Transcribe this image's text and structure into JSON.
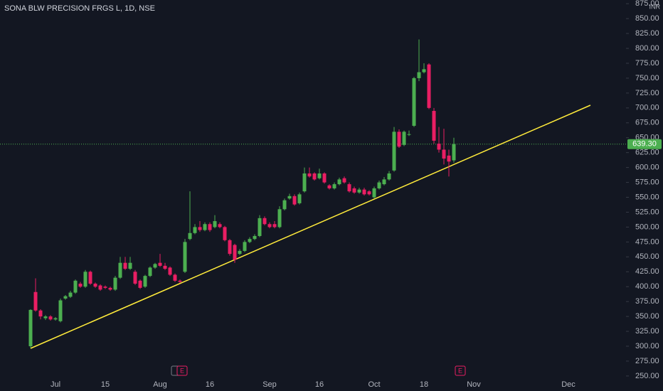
{
  "chart_data": {
    "type": "candlestick",
    "title": "SONA BLW PRECISION FRGS L, 1D, NSE",
    "currency": "INR",
    "up_color": "#4caf50",
    "down_color": "#e91e63",
    "grid": false,
    "ylim": [
      246.3,
      881.2
    ],
    "yticks": [
      {
        "value": 250,
        "label": "250.00"
      },
      {
        "value": 275,
        "label": "275.00"
      },
      {
        "value": 300,
        "label": "300.00"
      },
      {
        "value": 325,
        "label": "325.00"
      },
      {
        "value": 350,
        "label": "350.00"
      },
      {
        "value": 375,
        "label": "375.00"
      },
      {
        "value": 400,
        "label": "400.00"
      },
      {
        "value": 425,
        "label": "425.00"
      },
      {
        "value": 450,
        "label": "450.00"
      },
      {
        "value": 475,
        "label": "475.00"
      },
      {
        "value": 500,
        "label": "500.00"
      },
      {
        "value": 525,
        "label": "525.00"
      },
      {
        "value": 550,
        "label": "550.00"
      },
      {
        "value": 575,
        "label": "575.00"
      },
      {
        "value": 600,
        "label": "600.00"
      },
      {
        "value": 625,
        "label": "625.00"
      },
      {
        "value": 650,
        "label": "650.00"
      },
      {
        "value": 675,
        "label": "675.00"
      },
      {
        "value": 700,
        "label": "700.00"
      },
      {
        "value": 725,
        "label": "725.00"
      },
      {
        "value": 750,
        "label": "750.00"
      },
      {
        "value": 775,
        "label": "775.00"
      },
      {
        "value": 800,
        "label": "800.00"
      },
      {
        "value": 825,
        "label": "825.00"
      },
      {
        "value": 850,
        "label": "850.00"
      },
      {
        "value": 875,
        "label": "875.00"
      }
    ],
    "categories": [
      null,
      null,
      null,
      null,
      null,
      "Jul",
      null,
      null,
      null,
      null,
      null,
      null,
      null,
      null,
      null,
      "15",
      null,
      null,
      null,
      null,
      null,
      null,
      null,
      null,
      null,
      null,
      "Aug",
      null,
      null,
      null,
      null,
      null,
      null,
      null,
      null,
      null,
      "16",
      null,
      null,
      null,
      null,
      null,
      null,
      null,
      null,
      null,
      null,
      null,
      "Sep",
      null,
      null,
      null,
      null,
      null,
      null,
      null,
      null,
      null,
      "16",
      null,
      null,
      null,
      null,
      null,
      null,
      null,
      null,
      null,
      null,
      "Oct",
      null,
      null,
      null,
      null,
      null,
      null,
      null,
      null,
      null,
      "18",
      null,
      null,
      null,
      null,
      null,
      null,
      null,
      null,
      null,
      "Nov",
      null,
      null,
      null,
      null,
      null,
      null,
      null,
      null,
      null,
      null,
      null,
      null,
      null,
      null,
      null,
      null,
      null,
      null,
      "Dec",
      null,
      null,
      null,
      null,
      null,
      null,
      null,
      null,
      null,
      null,
      null
    ],
    "open": [
      300,
      391,
      360,
      347,
      350,
      345,
      342,
      380,
      383,
      390,
      405,
      400,
      425,
      405,
      402,
      400,
      398,
      395,
      415,
      440,
      430,
      425,
      410,
      400,
      418,
      432,
      440,
      435,
      432,
      420,
      410,
      425,
      480,
      490,
      500,
      495,
      505,
      500,
      505,
      500,
      478,
      470,
      455,
      460,
      475,
      480,
      485,
      515,
      505,
      505,
      500,
      530,
      548,
      552,
      540,
      560,
      590,
      590,
      582,
      590,
      570,
      565,
      572,
      582,
      572,
      565,
      558,
      563,
      560,
      550,
      565,
      572,
      580,
      595,
      660,
      638,
      655,
      670,
      750,
      760,
      773,
      695,
      640,
      630,
      620,
      612,
      null,
      null,
      null,
      null,
      null,
      null,
      null,
      null,
      null,
      null,
      null,
      null,
      null,
      null,
      null,
      null,
      null,
      null,
      null,
      null,
      null,
      null,
      null,
      null,
      null,
      null,
      null,
      null,
      null,
      null,
      null,
      null,
      null,
      null
    ],
    "high": [
      362,
      414,
      362,
      352,
      352,
      349,
      380,
      386,
      393,
      412,
      408,
      428,
      427,
      407,
      404,
      402,
      400,
      418,
      450,
      450,
      450,
      428,
      412,
      420,
      434,
      440,
      455,
      440,
      434,
      422,
      412,
      480,
      560,
      505,
      510,
      508,
      508,
      520,
      508,
      502,
      480,
      472,
      463,
      478,
      483,
      488,
      520,
      518,
      508,
      510,
      535,
      548,
      556,
      555,
      558,
      600,
      600,
      592,
      598,
      592,
      572,
      575,
      583,
      585,
      575,
      568,
      566,
      566,
      562,
      568,
      578,
      584,
      594,
      668,
      664,
      662,
      662,
      752,
      815,
      775,
      775,
      700,
      668,
      665,
      630,
      650,
      null,
      null,
      null,
      null,
      null,
      null,
      null,
      null,
      null,
      null,
      null,
      null,
      null,
      null,
      null,
      null,
      null,
      null,
      null,
      null,
      null,
      null,
      null,
      null,
      null,
      null,
      null,
      null,
      null,
      null,
      null,
      null,
      null,
      null
    ],
    "low": [
      297,
      358,
      345,
      344,
      343,
      343,
      340,
      378,
      381,
      388,
      398,
      398,
      403,
      398,
      393,
      396,
      393,
      393,
      413,
      428,
      428,
      403,
      396,
      398,
      416,
      430,
      433,
      428,
      418,
      408,
      406,
      423,
      478,
      488,
      492,
      493,
      492,
      498,
      498,
      476,
      452,
      440,
      453,
      458,
      473,
      478,
      483,
      503,
      498,
      498,
      498,
      528,
      546,
      536,
      538,
      558,
      583,
      578,
      580,
      573,
      563,
      563,
      570,
      573,
      558,
      556,
      556,
      553,
      553,
      548,
      563,
      570,
      578,
      593,
      633,
      636,
      653,
      668,
      745,
      758,
      698,
      640,
      625,
      605,
      585,
      608,
      null,
      null,
      null,
      null,
      null,
      null,
      null,
      null,
      null,
      null,
      null,
      null,
      null,
      null,
      null,
      null,
      null,
      null,
      null,
      null,
      null,
      null,
      null,
      null,
      null,
      null,
      null,
      null,
      null,
      null,
      null,
      null,
      null,
      null
    ],
    "close": [
      361,
      360,
      350,
      350,
      345,
      347,
      377,
      384,
      390,
      410,
      400,
      425,
      405,
      400,
      395,
      398,
      395,
      415,
      440,
      430,
      440,
      405,
      398,
      418,
      432,
      438,
      435,
      430,
      420,
      410,
      408,
      475,
      490,
      500,
      495,
      505,
      495,
      510,
      500,
      478,
      455,
      445,
      460,
      475,
      480,
      485,
      515,
      505,
      500,
      500,
      530,
      545,
      552,
      538,
      555,
      590,
      585,
      580,
      590,
      575,
      565,
      572,
      580,
      575,
      560,
      558,
      563,
      555,
      555,
      565,
      575,
      580,
      590,
      660,
      635,
      660,
      656,
      750,
      760,
      765,
      700,
      645,
      630,
      615,
      610,
      639.3,
      null,
      null,
      null,
      null,
      null,
      null,
      null,
      null,
      null,
      null,
      null,
      null,
      null,
      null,
      null,
      null,
      null,
      null,
      null,
      null,
      null,
      null,
      null,
      null,
      null,
      null,
      null,
      null,
      null,
      null,
      null,
      null,
      null,
      null
    ],
    "last_price": 639.3,
    "last_price_label": "639.30",
    "events": [
      {
        "label": "E"
      },
      {
        "label": "E"
      }
    ]
  }
}
